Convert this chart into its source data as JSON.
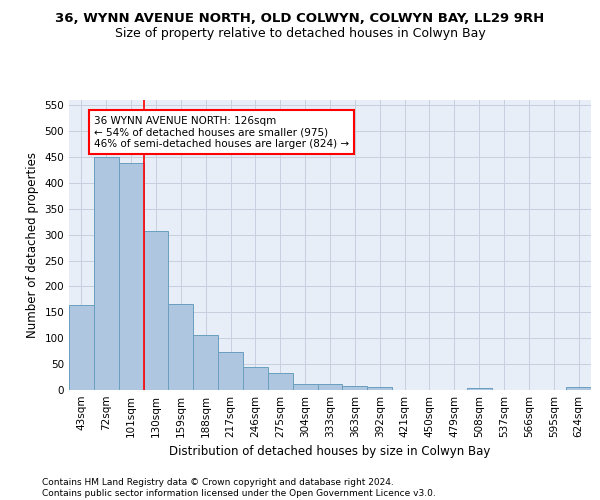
{
  "title": "36, WYNN AVENUE NORTH, OLD COLWYN, COLWYN BAY, LL29 9RH",
  "subtitle": "Size of property relative to detached houses in Colwyn Bay",
  "xlabel": "Distribution of detached houses by size in Colwyn Bay",
  "ylabel": "Number of detached properties",
  "categories": [
    "43sqm",
    "72sqm",
    "101sqm",
    "130sqm",
    "159sqm",
    "188sqm",
    "217sqm",
    "246sqm",
    "275sqm",
    "304sqm",
    "333sqm",
    "363sqm",
    "392sqm",
    "421sqm",
    "450sqm",
    "479sqm",
    "508sqm",
    "537sqm",
    "566sqm",
    "595sqm",
    "624sqm"
  ],
  "values": [
    164,
    450,
    438,
    307,
    167,
    106,
    74,
    45,
    33,
    11,
    11,
    8,
    5,
    0,
    0,
    0,
    4,
    0,
    0,
    0,
    5
  ],
  "bar_color": "#aec6df",
  "bar_edge_color": "#6a9fc0",
  "redline_x": 2.5,
  "annotation_text": "36 WYNN AVENUE NORTH: 126sqm\n← 54% of detached houses are smaller (975)\n46% of semi-detached houses are larger (824) →",
  "annotation_box_color": "white",
  "annotation_box_edge": "red",
  "ylim": [
    0,
    560
  ],
  "yticks": [
    0,
    50,
    100,
    150,
    200,
    250,
    300,
    350,
    400,
    450,
    500,
    550
  ],
  "grid_color": "#c8d0e0",
  "bg_color": "#e8eef8",
  "footer": "Contains HM Land Registry data © Crown copyright and database right 2024.\nContains public sector information licensed under the Open Government Licence v3.0.",
  "title_fontsize": 9.5,
  "subtitle_fontsize": 9,
  "xlabel_fontsize": 8.5,
  "ylabel_fontsize": 8.5,
  "tick_fontsize": 7.5,
  "annotation_fontsize": 7.5,
  "footer_fontsize": 6.5
}
